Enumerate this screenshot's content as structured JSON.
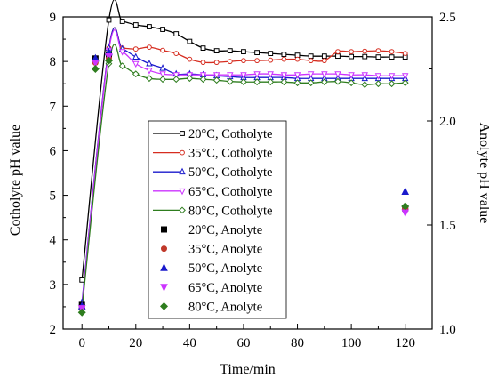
{
  "chart_data": {
    "type": "line",
    "xlabel": "Time/min",
    "ylabel_left": "Cotholyte pH value",
    "ylabel_right": "Anolyte  pH value",
    "xlim": [
      -7,
      130
    ],
    "ylim_left": [
      2,
      9
    ],
    "ylim_right": [
      1.0,
      2.5
    ],
    "x_ticks": [
      0,
      20,
      40,
      60,
      80,
      100,
      120
    ],
    "y_left_ticks": [
      2,
      3,
      4,
      5,
      6,
      7,
      8,
      9
    ],
    "y_right_ticks": [
      1.0,
      1.5,
      2.0,
      2.5
    ],
    "y_right_tick_labels": [
      "1.0",
      "1.5",
      "2.0",
      "2.5"
    ],
    "grid": false,
    "legend_position": "center-left",
    "catholyte_series": [
      {
        "name": "20°C, Cotholyte",
        "color": "#000000",
        "marker": "square-open",
        "x": [
          0,
          10,
          15,
          20,
          25,
          30,
          35,
          40,
          45,
          50,
          55,
          60,
          65,
          70,
          75,
          80,
          85,
          90,
          95,
          100,
          105,
          110,
          115,
          120
        ],
        "y": [
          3.1,
          8.93,
          8.9,
          8.82,
          8.78,
          8.72,
          8.62,
          8.45,
          8.3,
          8.24,
          8.24,
          8.22,
          8.2,
          8.18,
          8.16,
          8.14,
          8.12,
          8.12,
          8.12,
          8.11,
          8.11,
          8.1,
          8.1,
          8.1
        ]
      },
      {
        "name": "35°C, Cotholyte",
        "color": "#d62d20",
        "marker": "circle-open",
        "x": [
          0,
          10,
          15,
          20,
          25,
          30,
          35,
          40,
          45,
          50,
          55,
          60,
          65,
          70,
          75,
          80,
          85,
          90,
          95,
          100,
          105,
          110,
          115,
          120
        ],
        "y": [
          2.55,
          8.3,
          8.3,
          8.28,
          8.32,
          8.25,
          8.18,
          8.05,
          7.98,
          7.98,
          8.0,
          8.02,
          8.02,
          8.03,
          8.05,
          8.05,
          8.02,
          8.02,
          8.22,
          8.22,
          8.23,
          8.24,
          8.22,
          8.18
        ]
      },
      {
        "name": "50°C, Cotholyte",
        "color": "#1a1acc",
        "marker": "triangle-up-open",
        "x": [
          0,
          10,
          15,
          20,
          25,
          30,
          35,
          40,
          45,
          50,
          55,
          60,
          65,
          70,
          75,
          80,
          85,
          90,
          95,
          100,
          105,
          110,
          115,
          120
        ],
        "y": [
          2.6,
          8.3,
          8.28,
          8.1,
          7.95,
          7.85,
          7.72,
          7.72,
          7.7,
          7.68,
          7.66,
          7.64,
          7.64,
          7.64,
          7.64,
          7.62,
          7.62,
          7.62,
          7.62,
          7.62,
          7.62,
          7.62,
          7.62,
          7.62
        ]
      },
      {
        "name": "65°C, Cotholyte",
        "color": "#cc33ff",
        "marker": "triangle-down-open",
        "x": [
          0,
          10,
          15,
          20,
          25,
          30,
          35,
          40,
          45,
          50,
          55,
          60,
          65,
          70,
          75,
          80,
          85,
          90,
          95,
          100,
          105,
          110,
          115,
          120
        ],
        "y": [
          2.55,
          8.25,
          8.22,
          7.95,
          7.8,
          7.72,
          7.7,
          7.7,
          7.7,
          7.7,
          7.7,
          7.7,
          7.72,
          7.72,
          7.7,
          7.7,
          7.72,
          7.72,
          7.72,
          7.7,
          7.7,
          7.68,
          7.68,
          7.68
        ]
      },
      {
        "name": "80°C, Cotholyte",
        "color": "#2e7d1e",
        "marker": "diamond-open",
        "x": [
          0,
          10,
          15,
          20,
          25,
          30,
          35,
          40,
          45,
          50,
          55,
          60,
          65,
          70,
          75,
          80,
          85,
          90,
          95,
          100,
          105,
          110,
          115,
          120
        ],
        "y": [
          2.45,
          7.95,
          7.9,
          7.72,
          7.62,
          7.6,
          7.6,
          7.62,
          7.6,
          7.58,
          7.55,
          7.54,
          7.54,
          7.54,
          7.54,
          7.52,
          7.52,
          7.54,
          7.55,
          7.52,
          7.48,
          7.5,
          7.5,
          7.52
        ]
      }
    ],
    "anolyte_series": [
      {
        "name": "20°C,    Anolyte",
        "color": "#000000",
        "marker": "square-filled",
        "x": [
          0,
          5,
          10,
          120
        ],
        "y": [
          1.12,
          2.3,
          2.32,
          1.58
        ]
      },
      {
        "name": "35°C,    Anolyte",
        "color": "#c0392b",
        "marker": "circle-filled",
        "x": [
          0,
          5,
          10,
          120
        ],
        "y": [
          1.1,
          2.28,
          2.3,
          1.58
        ]
      },
      {
        "name": "50°C,    Anolyte",
        "color": "#1a1acc",
        "marker": "triangle-up-filled",
        "x": [
          0,
          5,
          10,
          120
        ],
        "y": [
          1.11,
          2.3,
          2.33,
          1.66
        ]
      },
      {
        "name": "65°C,    Anolyte",
        "color": "#cc33ff",
        "marker": "triangle-down-filled",
        "x": [
          0,
          5,
          10,
          120
        ],
        "y": [
          1.1,
          2.28,
          2.31,
          1.56
        ]
      },
      {
        "name": "80°C,    Anolyte",
        "color": "#2e7d1e",
        "marker": "diamond-filled",
        "x": [
          0,
          5,
          10,
          120
        ],
        "y": [
          1.08,
          2.25,
          2.29,
          1.59
        ]
      }
    ]
  }
}
